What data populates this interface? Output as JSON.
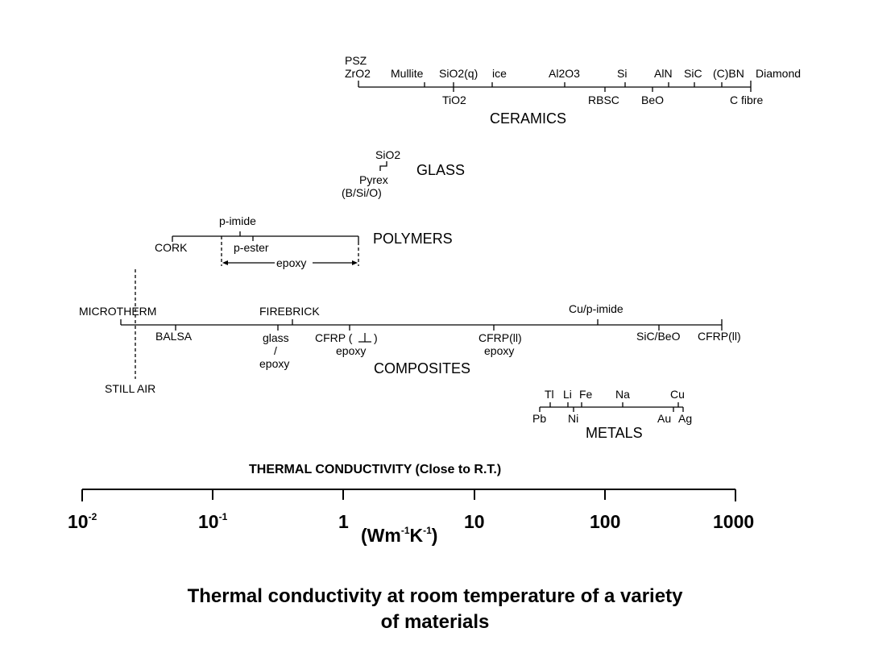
{
  "axis": {
    "title": "THERMAL CONDUCTIVITY (Close to R.T.)",
    "tick_labels": [
      "10-2",
      "10-1",
      "1",
      "10",
      "100",
      "1000"
    ],
    "unit": "(Wm-1K-1)"
  },
  "groups": {
    "ceramics": {
      "title": "CERAMICS",
      "labels": [
        "PSZ",
        "ZrO2",
        "Mullite",
        "SiO2(q)",
        "ice",
        "Al2O3",
        "Si",
        "AlN",
        "SiC",
        "(C)BN",
        "Diamond",
        "TiO2",
        "RBSC",
        "BeO",
        "C fibre"
      ]
    },
    "glass": {
      "title": "GLASS",
      "labels": [
        "SiO2",
        "Pyrex",
        "(B/Si/O)"
      ]
    },
    "polymers": {
      "title": "POLYMERS",
      "labels": [
        "p-imide",
        "CORK",
        "p-ester",
        "epoxy"
      ]
    },
    "composites": {
      "title": "COMPOSITES",
      "labels": [
        "MICROTHERM",
        "FIREBRICK",
        "Cu/p-imide",
        "BALSA",
        "glass",
        "/",
        "epoxy",
        "CFRP (",
        ")",
        "epoxy",
        "CFRP(ll)",
        "epoxy",
        "SiC/BeO",
        "CFRP(ll)",
        "STILL AIR"
      ]
    },
    "metals": {
      "title": "METALS",
      "labels": [
        "Tl",
        "Li",
        "Fe",
        "Na",
        "Cu",
        "Pb",
        "Ni",
        "Au",
        "Ag"
      ]
    }
  },
  "caption": {
    "line1": "Thermal conductivity at room temperature of a variety",
    "line2": "of materials"
  }
}
